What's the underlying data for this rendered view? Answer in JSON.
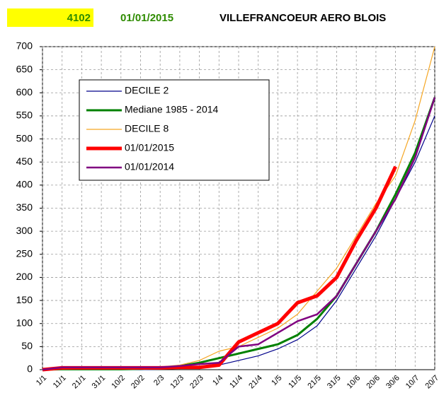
{
  "chart_data": {
    "type": "line",
    "station": "4102",
    "date": "01/01/2015",
    "title": "VILLEFRANCOEUR AERO BLOIS",
    "categories": [
      "1/1",
      "11/1",
      "21/1",
      "31/1",
      "10/2",
      "20/2",
      "2/3",
      "12/3",
      "22/3",
      "1/4",
      "11/4",
      "21/4",
      "1/5",
      "11/5",
      "21/5",
      "31/5",
      "10/6",
      "20/6",
      "30/6",
      "10/7",
      "20/7"
    ],
    "series": [
      {
        "name": "DECILE 2",
        "color": "#00008b",
        "values": [
          0,
          0,
          0,
          0,
          0,
          0,
          1,
          3,
          6,
          10,
          20,
          30,
          45,
          65,
          95,
          150,
          220,
          290,
          370,
          450,
          550
        ]
      },
      {
        "name": "Mediane 1985 - 2014",
        "color": "#008000",
        "values": [
          0,
          1,
          1,
          1,
          1,
          2,
          3,
          8,
          15,
          25,
          35,
          45,
          55,
          75,
          110,
          160,
          230,
          300,
          380,
          470,
          590
        ]
      },
      {
        "name": "DECILE 8",
        "color": "#f5a623",
        "values": [
          0,
          1,
          2,
          2,
          3,
          4,
          6,
          10,
          20,
          40,
          50,
          70,
          90,
          120,
          170,
          220,
          290,
          360,
          420,
          540,
          700
        ]
      },
      {
        "name": "01/01/2015",
        "color": "#ff0000",
        "values": [
          0,
          4,
          4,
          4,
          4,
          4,
          4,
          5,
          5,
          10,
          60,
          80,
          100,
          145,
          160,
          200,
          280,
          350,
          440,
          null,
          null
        ]
      },
      {
        "name": "01/01/2014",
        "color": "#800080",
        "values": [
          0,
          5,
          5,
          5,
          5,
          5,
          5,
          8,
          12,
          15,
          50,
          55,
          80,
          105,
          120,
          160,
          230,
          300,
          370,
          460,
          590
        ]
      }
    ],
    "ylim": [
      0,
      700
    ],
    "yticks": [
      0,
      50,
      100,
      150,
      200,
      250,
      300,
      350,
      400,
      450,
      500,
      550,
      600,
      650,
      700
    ],
    "grid": true
  }
}
